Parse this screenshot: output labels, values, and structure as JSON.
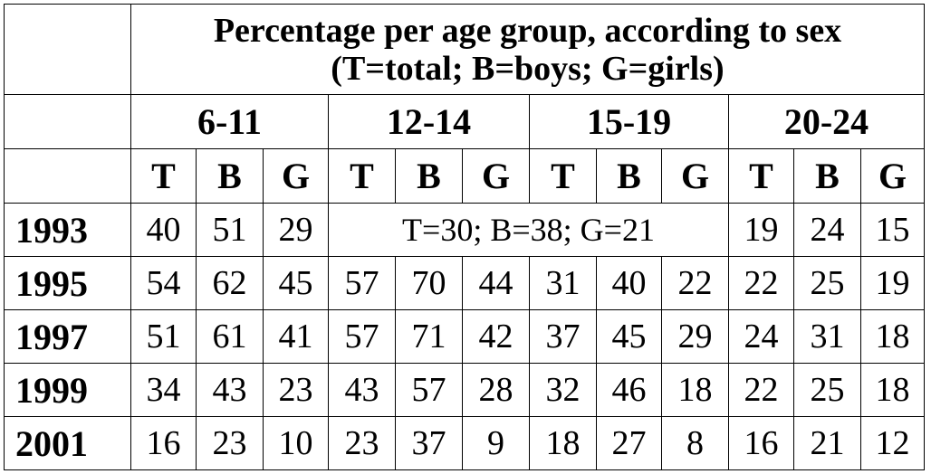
{
  "header": {
    "title_line1": "Percentage per age group, according to sex",
    "title_line2": "(T=total; B=boys; G=girls)"
  },
  "groups": [
    "6-11",
    "12-14",
    "15-19",
    "20-24"
  ],
  "subheaders": [
    "T",
    "B",
    "G"
  ],
  "rows": [
    {
      "year": "1993",
      "g1": [
        "40",
        "51",
        "29"
      ],
      "merged": "T=30; B=38; G=21",
      "g4": [
        "19",
        "24",
        "15"
      ]
    },
    {
      "year": "1995",
      "values": [
        "54",
        "62",
        "45",
        "57",
        "70",
        "44",
        "31",
        "40",
        "22",
        "22",
        "25",
        "19"
      ]
    },
    {
      "year": "1997",
      "values": [
        "51",
        "61",
        "41",
        "57",
        "71",
        "42",
        "37",
        "45",
        "29",
        "24",
        "31",
        "18"
      ]
    },
    {
      "year": "1999",
      "values": [
        "34",
        "43",
        "23",
        "43",
        "57",
        "28",
        "32",
        "46",
        "18",
        "22",
        "25",
        "18"
      ]
    },
    {
      "year": "2001",
      "values": [
        "16",
        "23",
        "10",
        "23",
        "37",
        "9",
        "18",
        "27",
        "8",
        "16",
        "21",
        "12"
      ]
    }
  ]
}
